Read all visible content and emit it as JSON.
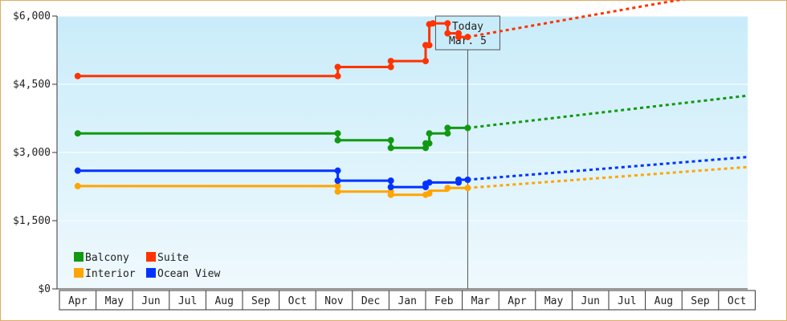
{
  "chart_data": {
    "type": "line",
    "title": "",
    "xlabel": "",
    "ylabel": "",
    "y_ticks": [
      "$0",
      "$1,500",
      "$3,000",
      "$4,500",
      "$6,000"
    ],
    "y_tick_values": [
      0,
      1500,
      3000,
      4500,
      6000
    ],
    "ylim": [
      0,
      6000
    ],
    "x_ticks": [
      "Apr",
      "May",
      "Jun",
      "Jul",
      "Aug",
      "Sep",
      "Oct",
      "Nov",
      "Dec",
      "Jan",
      "Feb",
      "Mar",
      "Apr",
      "May",
      "Jun",
      "Jul",
      "Aug",
      "Sep",
      "Oct"
    ],
    "today": {
      "line1": "Today",
      "line2": "Mar. 5",
      "x": 10.65
    },
    "legend": {
      "placement": "bottom-left"
    },
    "series": [
      {
        "name": "Balcony",
        "color": "#119911",
        "points": [
          [
            0,
            3420
          ],
          [
            7.1,
            3420
          ],
          [
            7.1,
            3270
          ],
          [
            8.55,
            3270
          ],
          [
            8.55,
            3100
          ],
          [
            9.5,
            3100
          ],
          [
            9.5,
            3200
          ],
          [
            9.6,
            3200
          ],
          [
            9.6,
            3420
          ],
          [
            10.1,
            3420
          ],
          [
            10.1,
            3540
          ],
          [
            10.65,
            3540
          ]
        ],
        "markers": [
          [
            0,
            3420
          ],
          [
            7.1,
            3420
          ],
          [
            7.1,
            3270
          ],
          [
            8.55,
            3270
          ],
          [
            8.55,
            3100
          ],
          [
            9.5,
            3100
          ],
          [
            9.5,
            3200
          ],
          [
            9.6,
            3200
          ],
          [
            9.6,
            3420
          ],
          [
            10.1,
            3420
          ],
          [
            10.1,
            3540
          ],
          [
            10.65,
            3540
          ]
        ],
        "forecast": [
          [
            10.65,
            3540
          ],
          [
            19,
            4250
          ]
        ]
      },
      {
        "name": "Suite",
        "color": "#ff3300",
        "points": [
          [
            0,
            4680
          ],
          [
            7.1,
            4680
          ],
          [
            7.1,
            4880
          ],
          [
            8.55,
            4880
          ],
          [
            8.55,
            5010
          ],
          [
            9.5,
            5010
          ],
          [
            9.5,
            5360
          ],
          [
            9.6,
            5360
          ],
          [
            9.6,
            5820
          ],
          [
            9.7,
            5820
          ],
          [
            9.7,
            5840
          ],
          [
            10.1,
            5840
          ],
          [
            10.1,
            5620
          ],
          [
            10.4,
            5620
          ],
          [
            10.4,
            5540
          ],
          [
            10.65,
            5540
          ]
        ],
        "markers": [
          [
            0,
            4680
          ],
          [
            7.1,
            4680
          ],
          [
            7.1,
            4880
          ],
          [
            8.55,
            4880
          ],
          [
            8.55,
            5010
          ],
          [
            9.5,
            5010
          ],
          [
            9.5,
            5360
          ],
          [
            9.6,
            5360
          ],
          [
            9.6,
            5820
          ],
          [
            9.7,
            5840
          ],
          [
            10.1,
            5840
          ],
          [
            10.1,
            5620
          ],
          [
            10.4,
            5620
          ],
          [
            10.4,
            5540
          ],
          [
            10.65,
            5540
          ]
        ],
        "forecast": [
          [
            10.65,
            5540
          ],
          [
            19,
            6620
          ]
        ]
      },
      {
        "name": "Interior",
        "color": "#ffa500",
        "points": [
          [
            0,
            2260
          ],
          [
            7.1,
            2260
          ],
          [
            7.1,
            2140
          ],
          [
            8.55,
            2140
          ],
          [
            8.55,
            2070
          ],
          [
            9.5,
            2070
          ],
          [
            9.5,
            2100
          ],
          [
            9.6,
            2100
          ],
          [
            9.6,
            2160
          ],
          [
            10.1,
            2160
          ],
          [
            10.1,
            2220
          ],
          [
            10.65,
            2220
          ]
        ],
        "markers": [
          [
            0,
            2260
          ],
          [
            7.1,
            2260
          ],
          [
            7.1,
            2140
          ],
          [
            8.55,
            2140
          ],
          [
            8.55,
            2070
          ],
          [
            9.5,
            2070
          ],
          [
            9.6,
            2100
          ],
          [
            10.1,
            2220
          ],
          [
            10.65,
            2220
          ]
        ],
        "forecast": [
          [
            10.65,
            2220
          ],
          [
            19,
            2680
          ]
        ]
      },
      {
        "name": "Ocean View",
        "color": "#0033ff",
        "points": [
          [
            0,
            2600
          ],
          [
            7.1,
            2600
          ],
          [
            7.1,
            2380
          ],
          [
            8.55,
            2380
          ],
          [
            8.55,
            2240
          ],
          [
            9.5,
            2240
          ],
          [
            9.5,
            2310
          ],
          [
            9.6,
            2310
          ],
          [
            9.6,
            2340
          ],
          [
            10.4,
            2340
          ],
          [
            10.4,
            2400
          ],
          [
            10.65,
            2400
          ]
        ],
        "markers": [
          [
            0,
            2600
          ],
          [
            7.1,
            2600
          ],
          [
            7.1,
            2380
          ],
          [
            8.55,
            2380
          ],
          [
            8.55,
            2240
          ],
          [
            9.5,
            2240
          ],
          [
            9.5,
            2310
          ],
          [
            9.6,
            2340
          ],
          [
            10.4,
            2340
          ],
          [
            10.4,
            2400
          ],
          [
            10.65,
            2400
          ]
        ],
        "forecast": [
          [
            10.65,
            2400
          ],
          [
            19,
            2900
          ]
        ]
      }
    ]
  }
}
